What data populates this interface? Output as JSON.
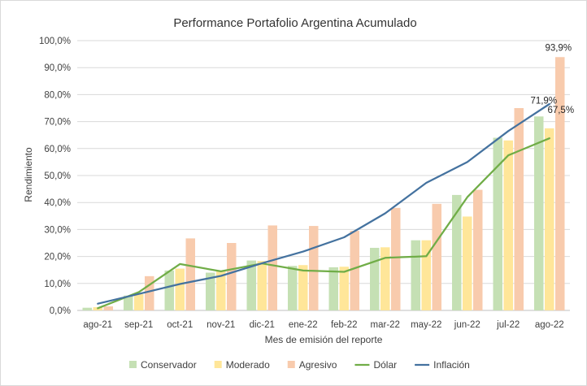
{
  "chart_data": {
    "type": "bar",
    "title": "Performance Portafolio Argentina Acumulado",
    "xlabel": "Mes de emisión del reporte",
    "ylabel": "Rendimiento",
    "categories": [
      "ago-21",
      "sep-21",
      "oct-21",
      "nov-21",
      "dic-21",
      "ene-22",
      "feb-22",
      "mar-22",
      "may-22",
      "jun-22",
      "jul-22",
      "ago-22"
    ],
    "y_ticks": [
      "0,0%",
      "10,0%",
      "20,0%",
      "30,0%",
      "40,0%",
      "50,0%",
      "60,0%",
      "70,0%",
      "80,0%",
      "90,0%",
      "100,0%"
    ],
    "ylim": [
      0,
      100
    ],
    "grid": true,
    "legend_position": "bottom",
    "series": [
      {
        "name": "Conservador",
        "kind": "bar",
        "color": "#c5e0b4",
        "values": [
          1.0,
          5.5,
          14.8,
          14.0,
          18.5,
          16.5,
          16.0,
          23.2,
          26.0,
          42.8,
          64.0,
          71.9
        ]
      },
      {
        "name": "Moderado",
        "kind": "bar",
        "color": "#ffe699",
        "values": [
          1.2,
          6.0,
          15.5,
          14.5,
          18.3,
          16.8,
          16.2,
          23.4,
          26.0,
          34.8,
          63.0,
          67.5
        ]
      },
      {
        "name": "Agresivo",
        "kind": "bar",
        "color": "#f8cbad",
        "values": [
          1.5,
          12.7,
          26.7,
          25.0,
          31.5,
          31.3,
          29.5,
          38.0,
          39.5,
          44.7,
          75.0,
          93.9
        ]
      },
      {
        "name": "Dólar",
        "kind": "line",
        "color": "#70ad47",
        "values": [
          0.8,
          6.8,
          17.2,
          14.5,
          17.4,
          14.8,
          14.3,
          19.5,
          20.1,
          42.0,
          57.5,
          63.8
        ]
      },
      {
        "name": "Inflación",
        "kind": "line",
        "color": "#44729f",
        "values": [
          2.5,
          6.1,
          9.8,
          12.8,
          17.5,
          21.8,
          27.1,
          36.0,
          47.3,
          55.0,
          66.5,
          76.5
        ]
      }
    ],
    "data_labels": [
      {
        "text": "93,9%",
        "series": "Agresivo",
        "category": "ago-22",
        "value": 93.9
      },
      {
        "text": "71,9%",
        "series": "Conservador",
        "category": "ago-22",
        "value": 71.9
      },
      {
        "text": "67,5%",
        "series": "Moderado",
        "category": "ago-22",
        "value": 67.5
      }
    ]
  }
}
